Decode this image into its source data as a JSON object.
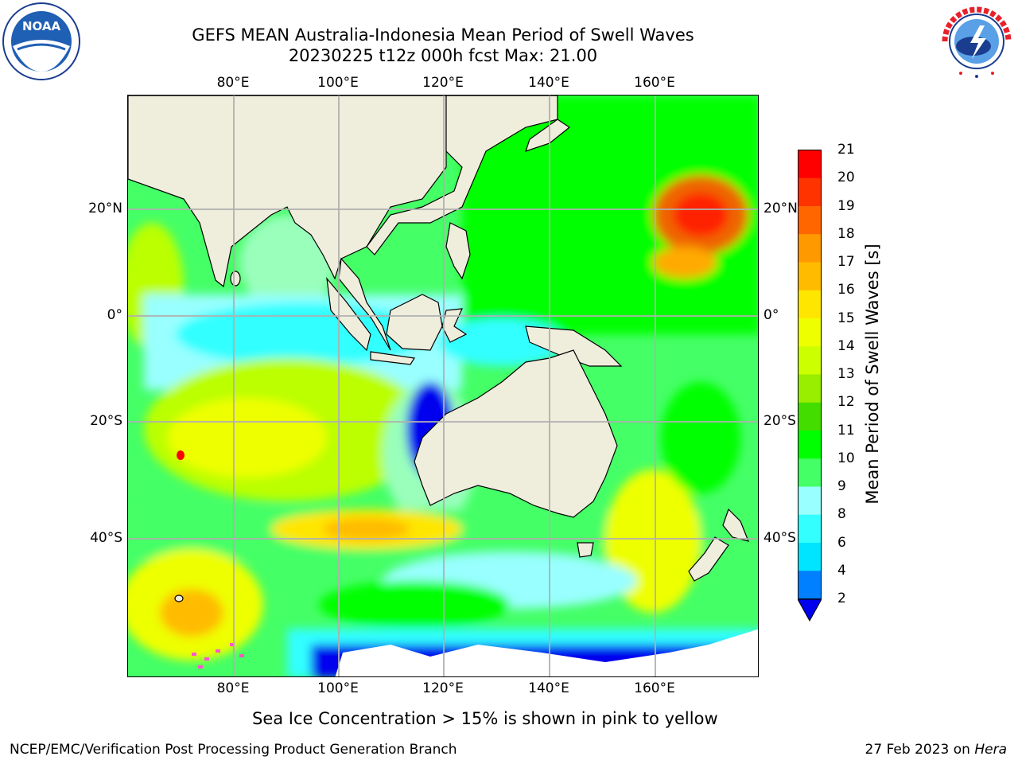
{
  "title": {
    "line1": "GEFS MEAN Australia-Indonesia Mean Period of Swell Waves",
    "line2": "20230225 t12z 000h fcst   Max: 21.00"
  },
  "map": {
    "lon_labels": [
      "80°E",
      "100°E",
      "120°E",
      "140°E",
      "160°E"
    ],
    "lat_labels": [
      "20°N",
      "0°",
      "20°S",
      "40°S"
    ],
    "lon_values": [
      80,
      100,
      120,
      140,
      160
    ],
    "lat_values": [
      20,
      0,
      -20,
      -40
    ],
    "lon_range": [
      60,
      180
    ],
    "lat_range": [
      -68,
      42
    ],
    "land_color": "#efeddc",
    "ocean_colors": [
      "#00ff00",
      "#44ff66",
      "#99ffbb",
      "#bbff00",
      "#eeff00",
      "#ffe600",
      "#99ffff",
      "#33ffff",
      "#0000ee"
    ]
  },
  "colorbar": {
    "title": "Mean Period of Swell Waves [s]",
    "tick_labels": [
      "2",
      "4",
      "6",
      "8",
      "9",
      "10",
      "11",
      "12",
      "13",
      "14",
      "15",
      "16",
      "17",
      "18",
      "19",
      "20",
      "21"
    ],
    "colors": [
      "#0000ee",
      "#0080ff",
      "#00e5ff",
      "#33ffff",
      "#99ffff",
      "#44ff66",
      "#00ff00",
      "#44dd00",
      "#99ee00",
      "#ccff00",
      "#eeff00",
      "#ffe600",
      "#ffbb00",
      "#ff9900",
      "#ff6600",
      "#ff3300",
      "#ff0000"
    ],
    "extend_color": "#0000ee"
  },
  "notes": {
    "ice": "Sea Ice Concentration > 15% is shown in pink to yellow",
    "footer_left": "NCEP/EMC/Verification Post Processing Product Generation Branch",
    "footer_date": "27 Feb 2023 on",
    "footer_machine": "Hera"
  },
  "logos": {
    "left": "noaa-logo",
    "right": "nws-logo"
  }
}
